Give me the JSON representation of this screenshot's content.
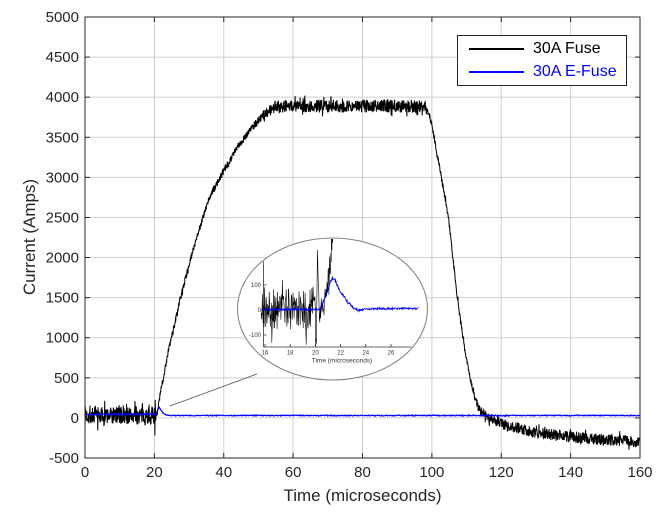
{
  "chart_data": {
    "type": "line",
    "title": "",
    "xlabel": "Time (microseconds)",
    "ylabel": "Current (Amps)",
    "xlim": [
      0,
      160
    ],
    "ylim": [
      -500,
      5000
    ],
    "xticks": [
      0,
      20,
      40,
      60,
      80,
      100,
      120,
      140,
      160
    ],
    "yticks": [
      -500,
      0,
      500,
      1000,
      1500,
      2000,
      2500,
      3000,
      3500,
      4000,
      4500,
      5000
    ],
    "grid": true,
    "grid_color": "#cfcfcf",
    "axis_color": "#262626",
    "background": "#ffffff",
    "legend": {
      "position": "top-right",
      "entries": [
        {
          "label": "30A Fuse",
          "color": "#000000"
        },
        {
          "label": "30A E-Fuse",
          "color": "#0000ff"
        }
      ]
    },
    "series": [
      {
        "name": "30A Fuse",
        "color": "#000000",
        "stroke_width": 1,
        "note": "keypoints are [time_us, current_amps, noise_halfband_amps]; noisy band around each level",
        "keypoints": [
          [
            0,
            30,
            115
          ],
          [
            20.1,
            30,
            115
          ],
          [
            20.18,
            -255,
            10
          ],
          [
            20.26,
            385,
            10
          ],
          [
            20.35,
            20,
            90
          ],
          [
            20.8,
            30,
            55
          ],
          [
            21.5,
            250,
            45
          ],
          [
            24,
            830,
            40
          ],
          [
            28,
            1580,
            40
          ],
          [
            32,
            2230,
            40
          ],
          [
            36,
            2760,
            45
          ],
          [
            40,
            3080,
            45
          ],
          [
            44,
            3380,
            45
          ],
          [
            48,
            3620,
            50
          ],
          [
            52,
            3800,
            60
          ],
          [
            55,
            3890,
            80
          ],
          [
            98,
            3890,
            80
          ],
          [
            99.5,
            3760,
            55
          ],
          [
            102,
            3180,
            45
          ],
          [
            104.8,
            2500,
            40
          ],
          [
            107.3,
            1500,
            40
          ],
          [
            109.5,
            850,
            40
          ],
          [
            111.1,
            480,
            40
          ],
          [
            112.5,
            230,
            45
          ],
          [
            114,
            90,
            55
          ],
          [
            116.5,
            0,
            60
          ],
          [
            120,
            -70,
            65
          ],
          [
            128,
            -165,
            68
          ],
          [
            136,
            -220,
            70
          ],
          [
            146,
            -260,
            70
          ],
          [
            160,
            -295,
            72
          ]
        ]
      },
      {
        "name": "30A E-Fuse",
        "color": "#0000ff",
        "stroke_width": 1.2,
        "keypoints": [
          [
            0,
            45,
            8
          ],
          [
            20.5,
            45,
            8
          ],
          [
            21.3,
            135,
            9
          ],
          [
            21.8,
            105,
            8
          ],
          [
            22.6,
            60,
            7
          ],
          [
            23.5,
            32,
            6
          ],
          [
            25,
            30,
            6
          ],
          [
            160,
            30,
            6
          ]
        ]
      }
    ],
    "inset": {
      "shape": "ellipse",
      "xlabel": "Time (microseconds)",
      "xticks": [
        16,
        18,
        20,
        22,
        24,
        26
      ],
      "yticks": [
        -100,
        0,
        100
      ],
      "xlim": [
        15.7,
        28.2
      ],
      "series": [
        {
          "name": "30A Fuse",
          "color": "#000000",
          "keypoints": [
            [
              15.7,
              0,
              85
            ],
            [
              20.0,
              5,
              90
            ],
            [
              20.08,
              -128,
              8
            ],
            [
              20.16,
              255,
              8
            ],
            [
              20.3,
              0,
              70
            ],
            [
              20.55,
              15,
              45
            ],
            [
              20.8,
              60,
              45
            ],
            [
              21.05,
              130,
              50
            ],
            [
              21.3,
              260,
              70
            ],
            [
              21.6,
              500,
              90
            ]
          ]
        },
        {
          "name": "30A E-Fuse",
          "color": "#0000ff",
          "keypoints": [
            [
              15.7,
              2,
              4
            ],
            [
              20.35,
              2,
              4
            ],
            [
              20.8,
              55,
              7
            ],
            [
              21.3,
              128,
              8
            ],
            [
              21.55,
              118,
              8
            ],
            [
              22.0,
              72,
              7
            ],
            [
              22.6,
              30,
              6
            ],
            [
              23.1,
              6,
              5
            ],
            [
              23.4,
              -2,
              4
            ],
            [
              24,
              5,
              4
            ],
            [
              28.2,
              6,
              4
            ]
          ]
        }
      ]
    }
  }
}
